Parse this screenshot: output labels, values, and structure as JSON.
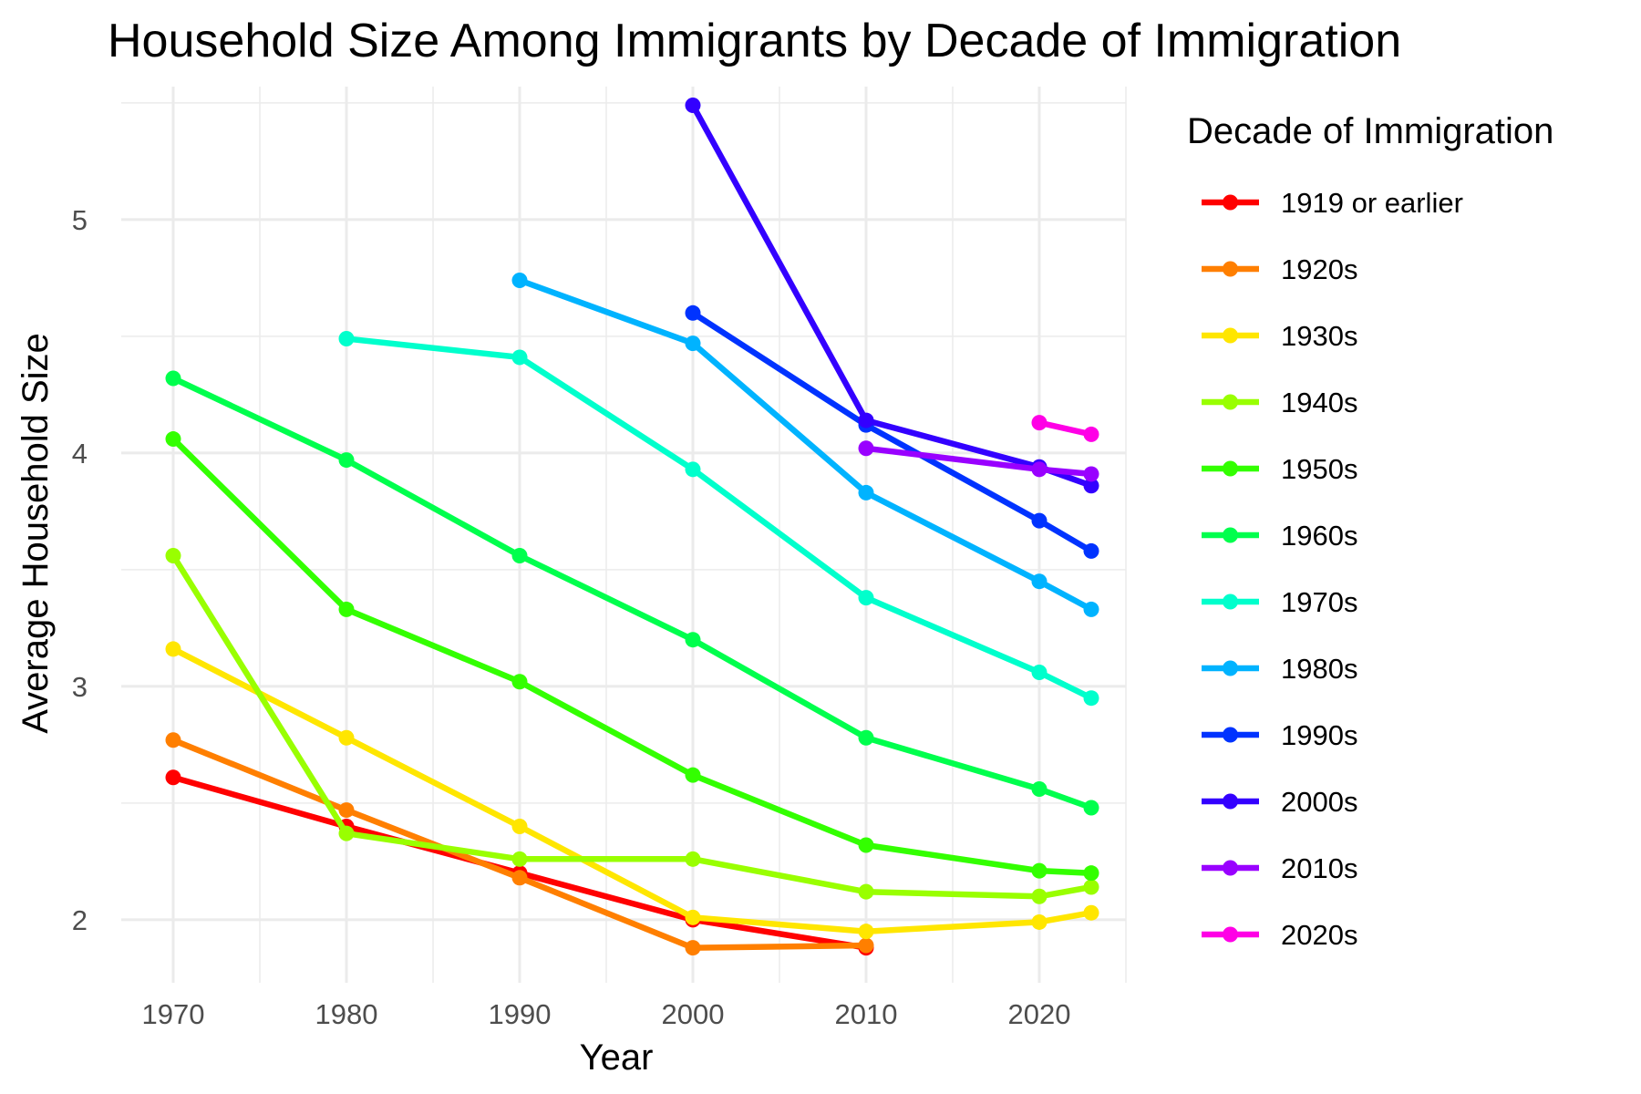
{
  "chart_data": {
    "type": "line",
    "title": "Household Size Among Immigrants by Decade of Immigration",
    "xlabel": "Year",
    "ylabel": "Average Household Size",
    "xlim": [
      1967,
      2025
    ],
    "ylim": [
      1.73,
      5.57
    ],
    "x_ticks": [
      1970,
      1980,
      1990,
      2000,
      2010,
      2020
    ],
    "y_ticks": [
      2,
      3,
      4,
      5
    ],
    "grid": true,
    "legend_title": "Decade of Immigration",
    "legend_position": "right",
    "series": [
      {
        "name": "1919 or earlier",
        "color": "#FF0000",
        "x": [
          1970,
          1980,
          1990,
          2000,
          2010
        ],
        "y": [
          2.61,
          2.4,
          2.2,
          2.0,
          1.88
        ]
      },
      {
        "name": "1920s",
        "color": "#FF7F00",
        "x": [
          1970,
          1980,
          1990,
          2000,
          2010
        ],
        "y": [
          2.77,
          2.47,
          2.18,
          1.88,
          1.89
        ]
      },
      {
        "name": "1930s",
        "color": "#FFE600",
        "x": [
          1970,
          1980,
          1990,
          2000,
          2010,
          2020,
          2023
        ],
        "y": [
          3.16,
          2.78,
          2.4,
          2.01,
          1.95,
          1.99,
          2.03
        ]
      },
      {
        "name": "1940s",
        "color": "#99FF00",
        "x": [
          1970,
          1980,
          1990,
          2000,
          2010,
          2020,
          2023
        ],
        "y": [
          3.56,
          2.37,
          2.26,
          2.26,
          2.12,
          2.1,
          2.14
        ]
      },
      {
        "name": "1950s",
        "color": "#33FF00",
        "x": [
          1970,
          1980,
          1990,
          2000,
          2010,
          2020,
          2023
        ],
        "y": [
          4.06,
          3.33,
          3.02,
          2.62,
          2.32,
          2.21,
          2.2
        ]
      },
      {
        "name": "1960s",
        "color": "#00FF4D",
        "x": [
          1970,
          1980,
          1990,
          2000,
          2010,
          2020,
          2023
        ],
        "y": [
          4.32,
          3.97,
          3.56,
          3.2,
          2.78,
          2.56,
          2.48
        ]
      },
      {
        "name": "1970s",
        "color": "#00FFCC",
        "x": [
          1980,
          1990,
          2000,
          2010,
          2020,
          2023
        ],
        "y": [
          4.49,
          4.41,
          3.93,
          3.38,
          3.06,
          2.95
        ]
      },
      {
        "name": "1980s",
        "color": "#00B3FF",
        "x": [
          1990,
          2000,
          2010,
          2020,
          2023
        ],
        "y": [
          4.74,
          4.47,
          3.83,
          3.45,
          3.33
        ]
      },
      {
        "name": "1990s",
        "color": "#0033FF",
        "x": [
          2000,
          2010,
          2020,
          2023
        ],
        "y": [
          4.6,
          4.12,
          3.71,
          3.58
        ]
      },
      {
        "name": "2000s",
        "color": "#3300FF",
        "x": [
          2000,
          2010,
          2020,
          2023
        ],
        "y": [
          5.49,
          4.14,
          3.94,
          3.86
        ]
      },
      {
        "name": "2010s",
        "color": "#9900FF",
        "x": [
          2010,
          2020,
          2023
        ],
        "y": [
          4.02,
          3.93,
          3.91
        ]
      },
      {
        "name": "2020s",
        "color": "#FF00E6",
        "x": [
          2020,
          2023
        ],
        "y": [
          4.13,
          4.08
        ]
      }
    ]
  }
}
